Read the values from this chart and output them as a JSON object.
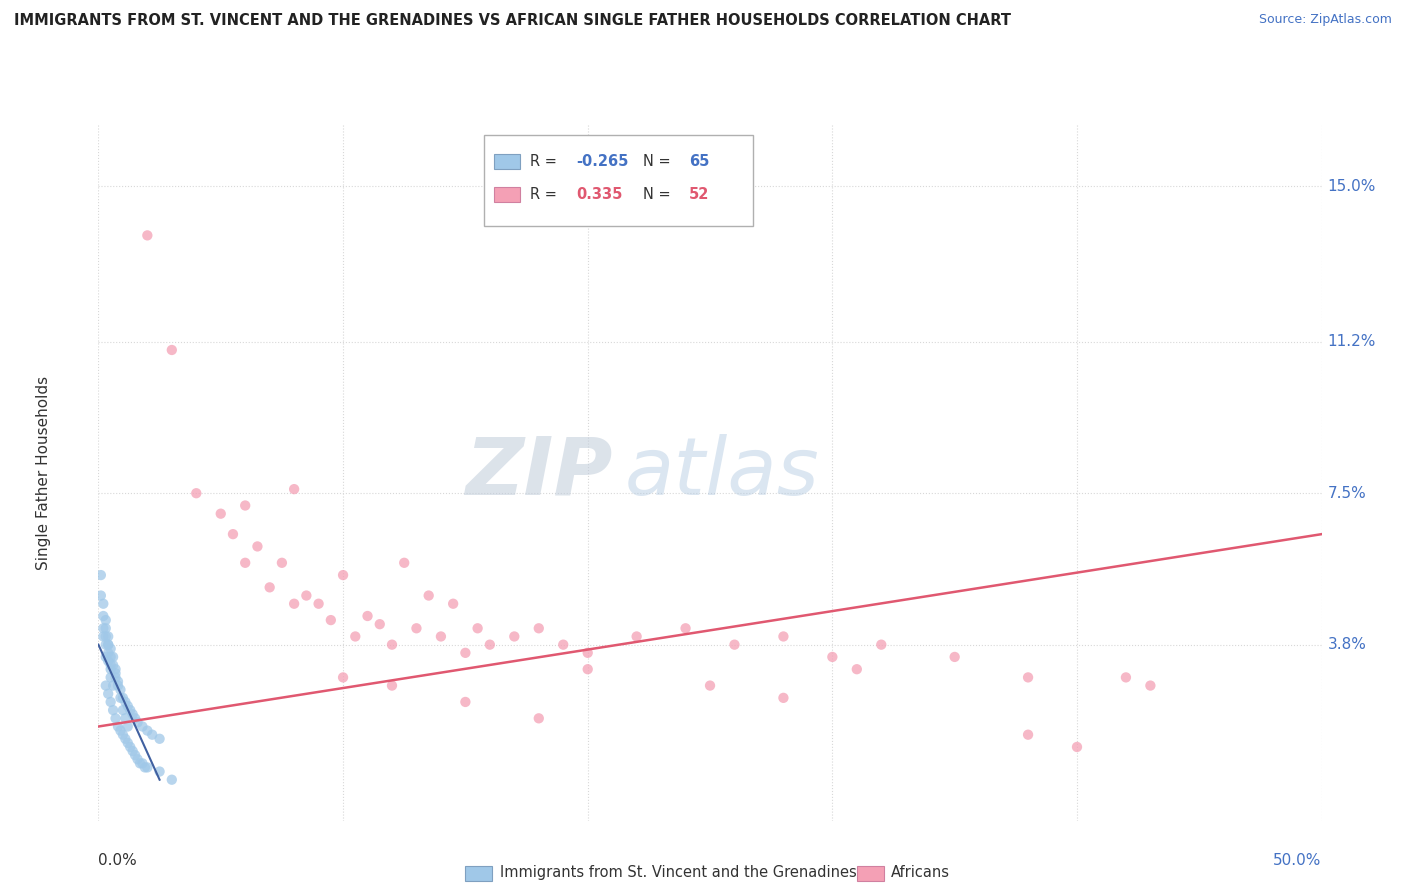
{
  "title": "IMMIGRANTS FROM ST. VINCENT AND THE GRENADINES VS AFRICAN SINGLE FATHER HOUSEHOLDS CORRELATION CHART",
  "source": "Source: ZipAtlas.com",
  "ylabel": "Single Father Households",
  "yticks_labels": [
    "3.8%",
    "7.5%",
    "11.2%",
    "15.0%"
  ],
  "ytick_values": [
    0.038,
    0.075,
    0.112,
    0.15
  ],
  "xlim": [
    0.0,
    0.5
  ],
  "ylim": [
    -0.005,
    0.165
  ],
  "xticks": [
    0.0,
    0.1,
    0.2,
    0.3,
    0.4,
    0.5
  ],
  "xtick_labels": [
    "0.0%",
    "",
    "",
    "",
    "",
    "50.0%"
  ],
  "legend_label1": "Immigrants from St. Vincent and the Grenadines",
  "legend_label2": "Africans",
  "legend_r1": "R = ",
  "legend_v1": "-0.265",
  "legend_n1": "N = ",
  "legend_nv1": "65",
  "legend_r2": "R =  ",
  "legend_v2": "0.335",
  "legend_n2": "N = ",
  "legend_nv2": "52",
  "watermark_zip": "ZIP",
  "watermark_atlas": "atlas",
  "dot_color_blue": "#a0c8e8",
  "dot_color_pink": "#f4a0b5",
  "line_color_blue": "#4060a0",
  "line_color_pink": "#e05870",
  "tick_color_blue": "#4472c4",
  "background_color": "#ffffff",
  "grid_color": "#d8d8d8",
  "blue_scatter_x": [
    0.001,
    0.002,
    0.002,
    0.003,
    0.003,
    0.003,
    0.004,
    0.004,
    0.004,
    0.005,
    0.005,
    0.005,
    0.006,
    0.006,
    0.007,
    0.007,
    0.008,
    0.009,
    0.01,
    0.011,
    0.012,
    0.001,
    0.002,
    0.002,
    0.003,
    0.003,
    0.004,
    0.004,
    0.005,
    0.005,
    0.006,
    0.007,
    0.008,
    0.009,
    0.01,
    0.011,
    0.012,
    0.013,
    0.014,
    0.015,
    0.016,
    0.018,
    0.02,
    0.022,
    0.025,
    0.003,
    0.004,
    0.005,
    0.006,
    0.007,
    0.008,
    0.009,
    0.01,
    0.011,
    0.012,
    0.013,
    0.014,
    0.015,
    0.016,
    0.017,
    0.018,
    0.019,
    0.02,
    0.025,
    0.03
  ],
  "blue_scatter_y": [
    0.055,
    0.048,
    0.042,
    0.04,
    0.038,
    0.035,
    0.038,
    0.036,
    0.034,
    0.037,
    0.033,
    0.03,
    0.035,
    0.028,
    0.032,
    0.03,
    0.028,
    0.025,
    0.022,
    0.02,
    0.018,
    0.05,
    0.045,
    0.04,
    0.044,
    0.042,
    0.04,
    0.038,
    0.035,
    0.032,
    0.033,
    0.031,
    0.029,
    0.027,
    0.025,
    0.024,
    0.023,
    0.022,
    0.021,
    0.02,
    0.019,
    0.018,
    0.017,
    0.016,
    0.015,
    0.028,
    0.026,
    0.024,
    0.022,
    0.02,
    0.018,
    0.017,
    0.016,
    0.015,
    0.014,
    0.013,
    0.012,
    0.011,
    0.01,
    0.009,
    0.009,
    0.008,
    0.008,
    0.007,
    0.005
  ],
  "pink_scatter_x": [
    0.02,
    0.03,
    0.04,
    0.05,
    0.055,
    0.065,
    0.075,
    0.085,
    0.09,
    0.1,
    0.11,
    0.115,
    0.125,
    0.135,
    0.145,
    0.155,
    0.16,
    0.17,
    0.18,
    0.19,
    0.2,
    0.22,
    0.24,
    0.26,
    0.28,
    0.3,
    0.31,
    0.32,
    0.35,
    0.38,
    0.42,
    0.43,
    0.06,
    0.07,
    0.08,
    0.095,
    0.105,
    0.12,
    0.13,
    0.14,
    0.15,
    0.2,
    0.25,
    0.28,
    0.38,
    0.4,
    0.1,
    0.12,
    0.15,
    0.18,
    0.06,
    0.08
  ],
  "pink_scatter_y": [
    0.138,
    0.11,
    0.075,
    0.07,
    0.065,
    0.062,
    0.058,
    0.05,
    0.048,
    0.055,
    0.045,
    0.043,
    0.058,
    0.05,
    0.048,
    0.042,
    0.038,
    0.04,
    0.042,
    0.038,
    0.036,
    0.04,
    0.042,
    0.038,
    0.04,
    0.035,
    0.032,
    0.038,
    0.035,
    0.03,
    0.03,
    0.028,
    0.058,
    0.052,
    0.048,
    0.044,
    0.04,
    0.038,
    0.042,
    0.04,
    0.036,
    0.032,
    0.028,
    0.025,
    0.016,
    0.013,
    0.03,
    0.028,
    0.024,
    0.02,
    0.072,
    0.076
  ],
  "blue_line_x": [
    0.0,
    0.025
  ],
  "blue_line_y": [
    0.038,
    0.005
  ],
  "pink_line_x": [
    0.0,
    0.5
  ],
  "pink_line_y": [
    0.018,
    0.065
  ]
}
